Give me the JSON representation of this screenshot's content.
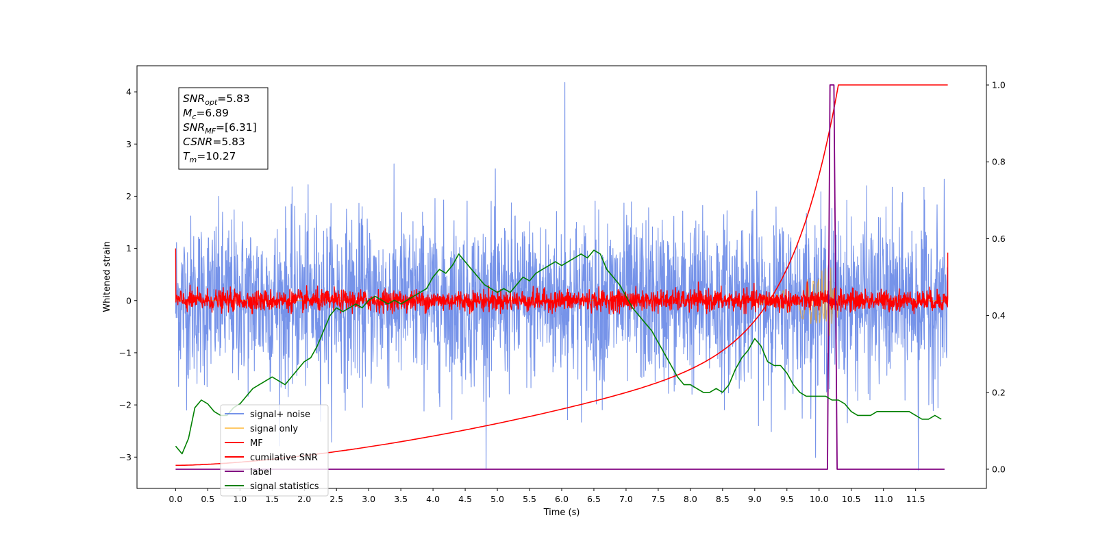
{
  "chart_data": {
    "type": "line",
    "title": "",
    "xlabel": "Time (s)",
    "ylabel": "Whitened strain",
    "xlim": [
      -0.6,
      12.6
    ],
    "ylim_left": [
      -3.6,
      4.5
    ],
    "ylim_right": [
      -0.05,
      1.05
    ],
    "x_ticks": [
      "0.0",
      "0.5",
      "1.0",
      "1.5",
      "2.0",
      "2.5",
      "3.0",
      "3.5",
      "4.0",
      "4.5",
      "5.0",
      "5.5",
      "6.0",
      "6.5",
      "7.0",
      "7.5",
      "8.0",
      "8.5",
      "9.0",
      "9.5",
      "10.0",
      "10.5",
      "11.0",
      "11.5"
    ],
    "y_ticks_left": [
      "4",
      "3",
      "2",
      "1",
      "0",
      "−1",
      "−2",
      "−3"
    ],
    "y_ticks_right": [
      "1.0",
      "0.8",
      "0.6",
      "0.4",
      "0.2",
      "0.0"
    ],
    "grid": false,
    "legend_position": "lower-left",
    "annotation": {
      "lines": [
        {
          "base": "SNR",
          "sub": "opt",
          "value": "=5.83"
        },
        {
          "base": "M",
          "sub": "c",
          "value": "=6.89"
        },
        {
          "base": "SNR",
          "sub": "MF",
          "value": "=[6.31]"
        },
        {
          "base": "CSNR",
          "sub": "",
          "value": "=5.83"
        },
        {
          "base": "T",
          "sub": "m",
          "value": "=10.27"
        }
      ]
    },
    "series": [
      {
        "name": "signal+ noise",
        "color": "#4169e1",
        "opacity": 0.72,
        "axis": "left",
        "kind": "noise",
        "x_range": [
          0.0,
          12.0
        ],
        "sigma": 0.8,
        "max": 4.18,
        "min": -3.25
      },
      {
        "name": "signal only",
        "color": "#ffa500",
        "opacity": 0.6,
        "axis": "left",
        "kind": "chirp",
        "x_range": [
          8.5,
          10.3
        ],
        "amp_peak": 0.8
      },
      {
        "name": "MF",
        "color": "#ff0000",
        "axis": "left",
        "kind": "noise",
        "x_range": [
          0.0,
          12.0
        ],
        "sigma": 0.1,
        "max": 1.0,
        "min": -0.25
      },
      {
        "name": "cumilative SNR",
        "color": "#ff0000",
        "axis": "right",
        "x": [
          0.0,
          0.5,
          1.0,
          2.0,
          3.0,
          4.0,
          5.0,
          5.5,
          6.0,
          6.5,
          7.0,
          7.5,
          8.0,
          8.5,
          9.0,
          9.5,
          9.8,
          10.0,
          10.1,
          10.2,
          10.3,
          12.0
        ],
        "values": [
          0.01,
          0.04,
          0.06,
          0.09,
          0.12,
          0.15,
          0.18,
          0.2,
          0.22,
          0.24,
          0.27,
          0.3,
          0.34,
          0.39,
          0.46,
          0.57,
          0.66,
          0.76,
          0.83,
          0.93,
          1.0,
          1.0
        ]
      },
      {
        "name": "label",
        "color": "#800080",
        "axis": "right",
        "x": [
          0.0,
          10.13,
          10.17,
          10.23,
          10.28,
          10.32,
          11.95
        ],
        "values": [
          0.0,
          0.0,
          1.0,
          1.0,
          0.0,
          0.0,
          0.0
        ]
      },
      {
        "name": "signal statistics",
        "color": "#008000",
        "axis": "right",
        "x": [
          0.0,
          0.1,
          0.2,
          0.3,
          0.4,
          0.5,
          0.6,
          0.7,
          0.8,
          0.9,
          1.0,
          1.1,
          1.2,
          1.3,
          1.4,
          1.5,
          1.6,
          1.7,
          1.8,
          1.9,
          2.0,
          2.1,
          2.2,
          2.3,
          2.4,
          2.5,
          2.6,
          2.7,
          2.8,
          2.9,
          3.0,
          3.1,
          3.2,
          3.3,
          3.4,
          3.5,
          3.6,
          3.7,
          3.8,
          3.9,
          4.0,
          4.1,
          4.2,
          4.3,
          4.4,
          4.5,
          4.6,
          4.7,
          4.8,
          4.9,
          5.0,
          5.1,
          5.2,
          5.3,
          5.4,
          5.5,
          5.6,
          5.7,
          5.8,
          5.9,
          6.0,
          6.1,
          6.2,
          6.3,
          6.4,
          6.5,
          6.6,
          6.7,
          6.8,
          6.9,
          7.0,
          7.1,
          7.2,
          7.3,
          7.4,
          7.5,
          7.6,
          7.7,
          7.8,
          7.9,
          8.0,
          8.1,
          8.2,
          8.3,
          8.4,
          8.5,
          8.6,
          8.7,
          8.8,
          8.9,
          9.0,
          9.1,
          9.2,
          9.3,
          9.4,
          9.5,
          9.6,
          9.7,
          9.8,
          9.9,
          10.0,
          10.1,
          10.2,
          10.3,
          10.4,
          10.5,
          10.6,
          10.7,
          10.8,
          10.9,
          11.0,
          11.1,
          11.2,
          11.3,
          11.4,
          11.5,
          11.6,
          11.7,
          11.8,
          11.9
        ],
        "values": [
          0.06,
          0.04,
          0.08,
          0.16,
          0.18,
          0.17,
          0.15,
          0.14,
          0.14,
          0.16,
          0.17,
          0.19,
          0.21,
          0.22,
          0.23,
          0.24,
          0.23,
          0.22,
          0.24,
          0.26,
          0.28,
          0.29,
          0.32,
          0.36,
          0.4,
          0.42,
          0.41,
          0.42,
          0.43,
          0.42,
          0.44,
          0.45,
          0.44,
          0.43,
          0.44,
          0.43,
          0.44,
          0.45,
          0.46,
          0.47,
          0.5,
          0.52,
          0.51,
          0.53,
          0.56,
          0.54,
          0.52,
          0.5,
          0.48,
          0.47,
          0.46,
          0.47,
          0.46,
          0.48,
          0.5,
          0.49,
          0.51,
          0.52,
          0.53,
          0.54,
          0.53,
          0.54,
          0.55,
          0.56,
          0.55,
          0.57,
          0.56,
          0.52,
          0.5,
          0.48,
          0.45,
          0.42,
          0.4,
          0.38,
          0.36,
          0.33,
          0.3,
          0.27,
          0.24,
          0.22,
          0.22,
          0.21,
          0.2,
          0.2,
          0.21,
          0.2,
          0.22,
          0.26,
          0.29,
          0.31,
          0.34,
          0.32,
          0.28,
          0.27,
          0.27,
          0.25,
          0.22,
          0.2,
          0.19,
          0.19,
          0.19,
          0.19,
          0.18,
          0.18,
          0.17,
          0.15,
          0.14,
          0.14,
          0.14,
          0.15,
          0.15,
          0.15,
          0.15,
          0.15,
          0.15,
          0.14,
          0.13,
          0.13,
          0.14,
          0.13
        ]
      }
    ]
  }
}
